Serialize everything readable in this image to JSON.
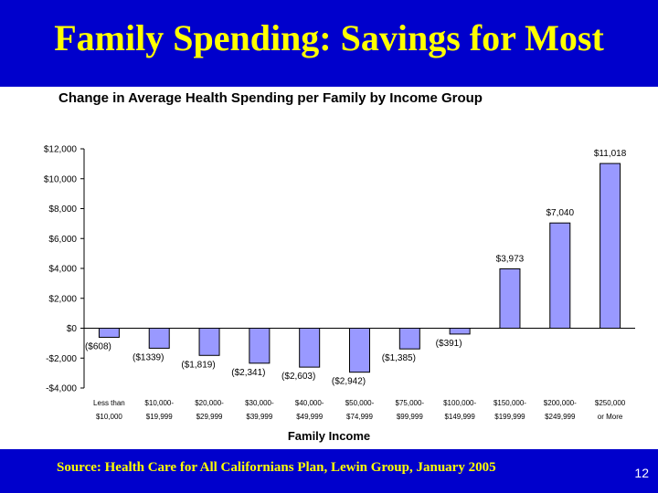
{
  "slide": {
    "title": "Family Spending: Savings for Most",
    "source": "Source: Health Care for All Californians Plan, Lewin Group, January 2005",
    "page_number": "12"
  },
  "colors": {
    "band": "#0000cc",
    "title": "#ffff00",
    "bar": "#9999ff",
    "bar_stroke": "#000000"
  },
  "chart_data": {
    "type": "bar",
    "title": "Change in Average Health Spending per Family by Income Group",
    "xlabel": "Family Income",
    "ylabel": "",
    "ylim": [
      -4000,
      12000
    ],
    "yticks": [
      12000,
      10000,
      8000,
      6000,
      4000,
      2000,
      0,
      -2000,
      -4000
    ],
    "ytick_labels": [
      "$12,000",
      "$10,000",
      "$8,000",
      "$6,000",
      "$4,000",
      "$2,000",
      "$0",
      "-$2,000",
      "-$4,000"
    ],
    "grid": false,
    "categories": [
      [
        "Less than",
        "$10,000"
      ],
      [
        "$10,000-",
        "$19,999"
      ],
      [
        "$20,000-",
        "$29,999"
      ],
      [
        "$30,000-",
        "$39,999"
      ],
      [
        "$40,000-",
        "$49,999"
      ],
      [
        "$50,000-",
        "$74,999"
      ],
      [
        "$75,000-",
        "$99,999"
      ],
      [
        "$100,000-",
        "$149,999"
      ],
      [
        "$150,000-",
        "$199,999"
      ],
      [
        "$200,000-",
        "$249,999"
      ],
      [
        "$250,000",
        "or More"
      ]
    ],
    "values": [
      -608,
      -1339,
      -1819,
      -2341,
      -2603,
      -2942,
      -1385,
      -391,
      3973,
      7040,
      11018
    ],
    "value_labels": [
      "($608)",
      "($1339)",
      "($1,819)",
      "($2,341)",
      "($2,603)",
      "($2,942)",
      "($1,385)",
      "($391)",
      "$3,973",
      "$7,040",
      "$11,018"
    ]
  }
}
